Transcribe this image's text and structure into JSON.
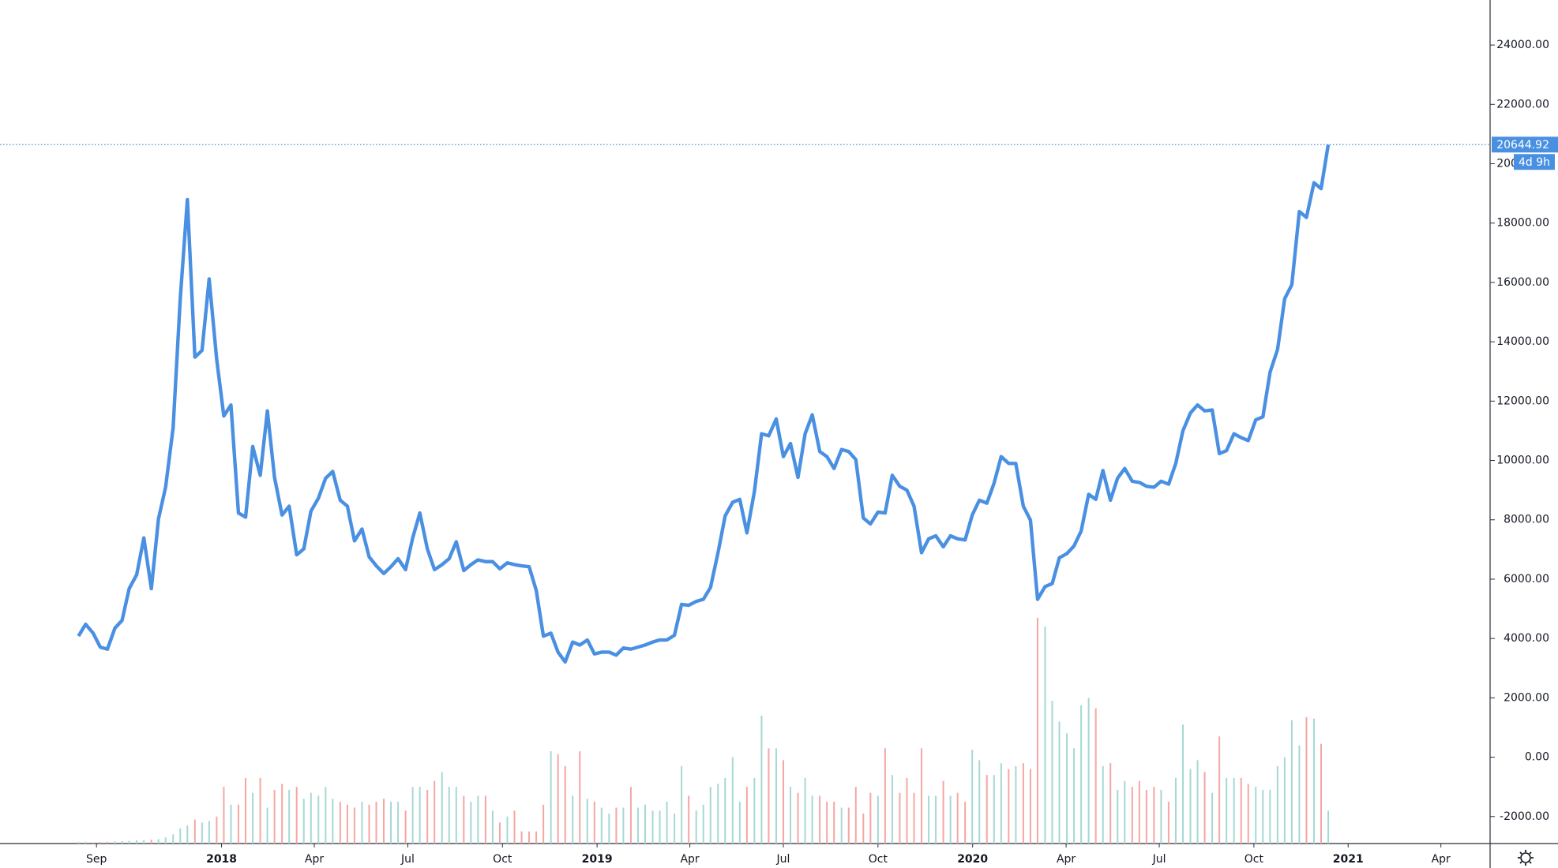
{
  "chart_data": {
    "type": "line",
    "color": "#4a90e2",
    "x": [
      2017.619,
      2017.638,
      2017.658,
      2017.677,
      2017.696,
      2017.716,
      2017.735,
      2017.754,
      2017.774,
      2017.793,
      2017.813,
      2017.832,
      2017.851,
      2017.871,
      2017.89,
      2017.909,
      2017.929,
      2017.948,
      2017.967,
      2017.987,
      2018.006,
      2018.025,
      2018.045,
      2018.064,
      2018.083,
      2018.103,
      2018.122,
      2018.141,
      2018.161,
      2018.18,
      2018.2,
      2018.219,
      2018.238,
      2018.258,
      2018.277,
      2018.296,
      2018.316,
      2018.335,
      2018.354,
      2018.374,
      2018.393,
      2018.412,
      2018.432,
      2018.451,
      2018.47,
      2018.49,
      2018.509,
      2018.528,
      2018.548,
      2018.567,
      2018.587,
      2018.606,
      2018.625,
      2018.645,
      2018.664,
      2018.683,
      2018.703,
      2018.722,
      2018.741,
      2018.761,
      2018.78,
      2018.799,
      2018.819,
      2018.838,
      2018.857,
      2018.877,
      2018.896,
      2018.915,
      2018.935,
      2018.954,
      2018.974,
      2018.993,
      2019.012,
      2019.032,
      2019.051,
      2019.07,
      2019.09,
      2019.109,
      2019.128,
      2019.148,
      2019.167,
      2019.186,
      2019.206,
      2019.225,
      2019.244,
      2019.264,
      2019.283,
      2019.302,
      2019.322,
      2019.341,
      2019.361,
      2019.38,
      2019.399,
      2019.419,
      2019.438,
      2019.457,
      2019.477,
      2019.496,
      2019.515,
      2019.535,
      2019.554,
      2019.573,
      2019.593,
      2019.612,
      2019.631,
      2019.651,
      2019.67,
      2019.689,
      2019.709,
      2019.728,
      2019.748,
      2019.767,
      2019.786,
      2019.806,
      2019.825,
      2019.844,
      2019.864,
      2019.883,
      2019.902,
      2019.922,
      2019.941,
      2019.96,
      2019.98,
      2019.999,
      2020.018,
      2020.038,
      2020.057,
      2020.076,
      2020.096,
      2020.115,
      2020.135,
      2020.154,
      2020.173,
      2020.193,
      2020.212,
      2020.231,
      2020.251,
      2020.27,
      2020.289,
      2020.309,
      2020.328,
      2020.347,
      2020.367,
      2020.386,
      2020.405,
      2020.425,
      2020.444,
      2020.463,
      2020.483,
      2020.502,
      2020.522,
      2020.541,
      2020.56,
      2020.58,
      2020.599,
      2020.618,
      2020.638,
      2020.657,
      2020.676,
      2020.696,
      2020.715,
      2020.734,
      2020.754,
      2020.773,
      2020.792,
      2020.812,
      2020.831,
      2020.85,
      2020.87,
      2020.889,
      2020.909,
      2020.928,
      2020.947
    ],
    "values": [
      4080,
      4480,
      4180,
      3710,
      3640,
      4350,
      4610,
      5680,
      6150,
      7390,
      5680,
      8030,
      9100,
      11100,
      15450,
      18790,
      13480,
      13710,
      16120,
      13410,
      11500,
      11870,
      8230,
      8090,
      10470,
      9500,
      11670,
      9430,
      8160,
      8460,
      6820,
      7020,
      8290,
      8730,
      9400,
      9630,
      8660,
      8460,
      7290,
      7690,
      6750,
      6450,
      6190,
      6420,
      6690,
      6320,
      7390,
      8230,
      7020,
      6320,
      6490,
      6690,
      7260,
      6290,
      6490,
      6650,
      6590,
      6590,
      6350,
      6550,
      6490,
      6450,
      6420,
      5620,
      4080,
      4180,
      3540,
      3210,
      3880,
      3780,
      3950,
      3480,
      3540,
      3540,
      3440,
      3680,
      3640,
      3710,
      3780,
      3880,
      3950,
      3950,
      4110,
      5150,
      5120,
      5250,
      5320,
      5720,
      6890,
      8130,
      8590,
      8690,
      7560,
      8960,
      10900,
      10830,
      11400,
      10130,
      10570,
      9430,
      10900,
      11540,
      10300,
      10130,
      9730,
      10370,
      10300,
      10030,
      8060,
      7860,
      8260,
      8230,
      9500,
      9130,
      9000,
      8460,
      6890,
      7360,
      7460,
      7090,
      7460,
      7360,
      7320,
      8160,
      8660,
      8560,
      9230,
      10130,
      9900,
      9900,
      8460,
      7990,
      5320,
      5750,
      5850,
      6720,
      6860,
      7120,
      7620,
      8860,
      8690,
      9660,
      8660,
      9400,
      9730,
      9300,
      9260,
      9130,
      9100,
      9300,
      9200,
      9900,
      11000,
      11600,
      11870,
      11670,
      11700,
      10230,
      10330,
      10900,
      10770,
      10670,
      11370,
      11470,
      12970,
      13740,
      15450,
      15920,
      18390,
      18190,
      19360,
      19160,
      20644.92
    ],
    "volume": {
      "up_color": "#a6d8d3",
      "down_color": "#f3a7a4",
      "values": [
        -2860,
        -2850,
        -2870,
        -2860,
        -2850,
        -2840,
        -2830,
        -2820,
        -2800,
        -2790,
        -2780,
        -2760,
        -2700,
        -2600,
        -2400,
        -2300,
        -2100,
        -2200,
        -2150,
        -2000,
        -1000,
        -1600,
        -1600,
        -700,
        -1200,
        -700,
        -1700,
        -1100,
        -900,
        -1100,
        -1000,
        -1400,
        -1200,
        -1300,
        -1000,
        -1400,
        -1500,
        -1600,
        -1700,
        -1500,
        -1600,
        -1500,
        -1400,
        -1500,
        -1500,
        -1800,
        -1000,
        -1000,
        -1100,
        -800,
        -500,
        -1000,
        -1000,
        -1300,
        -1500,
        -1300,
        -1300,
        -1800,
        -2200,
        -2000,
        -1800,
        -2500,
        -2500,
        -2500,
        -1600,
        200,
        100,
        -300,
        -1300,
        200,
        -1400,
        -1500,
        -1700,
        -1900,
        -1700,
        -1700,
        -1000,
        -1700,
        -1600,
        -1800,
        -1800,
        -1500,
        -1900,
        -300,
        -1300,
        -1800,
        -1600,
        -1000,
        -900,
        -700,
        0,
        -1500,
        -1000,
        -700,
        1400,
        300,
        300,
        -100,
        -1000,
        -1200,
        -700,
        -1300,
        -1300,
        -1500,
        -1500,
        -1700,
        -1700,
        -1000,
        -1900,
        -1200,
        -1300,
        300,
        -600,
        -1200,
        -700,
        -1200,
        300,
        -1300,
        -1300,
        -800,
        -1300,
        -1200,
        -1500,
        250,
        -100,
        -600,
        -600,
        -200,
        -400,
        -300,
        -200,
        -400,
        4700,
        4400,
        1900,
        1200,
        800,
        300,
        1750,
        2000,
        1650,
        -300,
        -200,
        -1100,
        -800,
        -1000,
        -800,
        -1100,
        -1000,
        -1100,
        -1500,
        -700,
        1100,
        -400,
        -100,
        -500,
        -1200,
        700,
        -700,
        -700,
        -700,
        -900,
        -1000,
        -1100,
        -1100,
        -300,
        0,
        1250,
        400,
        1350,
        1300,
        450,
        -1800
      ]
    },
    "xlim": [
      2017.41,
      2021.378
    ],
    "ylim": [
      -2910,
      25518
    ],
    "xticks": [
      {
        "value": 2017.667,
        "label": "Sep"
      },
      2018,
      {
        "value": 2018.247,
        "label": "Apr"
      },
      {
        "value": 2018.496,
        "label": "Jul"
      },
      {
        "value": 2018.748,
        "label": "Oct"
      },
      2019,
      {
        "value": 2019.247,
        "label": "Apr"
      },
      {
        "value": 2019.496,
        "label": "Jul"
      },
      {
        "value": 2019.748,
        "label": "Oct"
      },
      2020,
      {
        "value": 2020.249,
        "label": "Apr"
      },
      {
        "value": 2020.497,
        "label": "Jul"
      },
      {
        "value": 2020.749,
        "label": "Oct"
      },
      2021,
      {
        "value": 2021.247,
        "label": "Apr"
      }
    ],
    "yticks": [
      {
        "value": -2000,
        "label": "-2000.00"
      },
      {
        "value": 0,
        "label": "0.00"
      },
      {
        "value": 2000,
        "label": "2000.00"
      },
      {
        "value": 4000,
        "label": "4000.00"
      },
      {
        "value": 6000,
        "label": "6000.00"
      },
      {
        "value": 8000,
        "label": "8000.00"
      },
      {
        "value": 10000,
        "label": "10000.00"
      },
      {
        "value": 12000,
        "label": "12000.00"
      },
      {
        "value": 14000,
        "label": "14000.00"
      },
      {
        "value": 16000,
        "label": "16000.00"
      },
      {
        "value": 18000,
        "label": "18000.00"
      },
      {
        "value": 20000,
        "label": "20000.00"
      },
      {
        "value": 22000,
        "label": "22000.00"
      },
      {
        "value": 24000,
        "label": "24000.00"
      }
    ],
    "grid": false,
    "countdown": "4d 9h"
  }
}
